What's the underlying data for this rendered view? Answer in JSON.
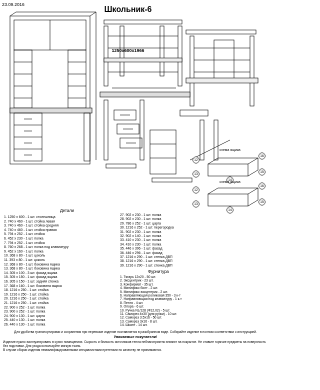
{
  "header": {
    "date": "23.09.2016",
    "title": "Школьник-6",
    "dimensions": "1250x600x1966"
  },
  "parts": {
    "title": "Детали",
    "items": [
      "1. 1250 x 600 - 1 шт. столешница",
      "2. 740 x 460 - 1 шт. стойка левая",
      "3. 740 x 460 - 1 шт. стойка средняя",
      "4. 740 x 460 - 1 шт. стойка правая",
      "5. 794 x 252 - 1 шт. стойка",
      "6. 452 x 230 - 1 шт. полка",
      "7. 794 x 252 - 1 шт. стойка",
      "8. 760 x 268 - 1 шт. полка под клавиатуру",
      "9. 452 x 160 - 1 шт. полка",
      "10. 368 x 80 - 1 шт. цоколь",
      "11. 393 x 80 - 1 шт. цоколь",
      "12. 368 x 80 - 1 шт. боковина ящика",
      "13. 368 x 80 - 1 шт. боковина ящика",
      "14. 305 x 100 - 3 шт. фасад ящика",
      "15. 305 x 150 - 1 шт. фасад ящика",
      "16. 305 x 150 - 1 шт. задняя стенка",
      "17. 368 x 160 - 1 шт. боковина ящика",
      "18. 1216 x 250 - 1 шт. стойка",
      "19. 1216 x 250 - 1 шт. стойка",
      "20. 1216 x 250 - 1 шт. стойка",
      "21. 1216 x 250 - 1 шт. стойка",
      "22. 900 x 252 - 1 шт. полка",
      "23. 900 x 252 - 1 шт. полка",
      "24. 900 x 130 - 1 шт. царга",
      "25. 440 x 130 - 1 шт. полка",
      "26. 440 x 130 - 1 шт. полка"
    ],
    "items2": [
      "27. 902 x 230 - 1 шт. полка",
      "28. 902 x 230 - 1 шт. полка",
      "29. 786 x 252 - 1 шт. царга",
      "30. 1216 x 252 - 1 шт. перегородка",
      "31. 902 x 230 - 1 шт. полка",
      "32. 902 x 140 - 1 шт. полка",
      "33. 410 x 230 - 1 шт. полка",
      "34. 410 x 230 - 1 шт. полка",
      "35. 446 x 396 - 1 шт. фасад",
      "36. 446 x 296 - 1 шт. фасад",
      "37. 1216 x 290 - 1 шт. стенка ДВП",
      "38. 1216 x 290 - 1 шт. стенка ДВП",
      "39. 1216 x 290 - 1 шт. стенка ДВП"
    ]
  },
  "fittings": {
    "title": "Фурнитура",
    "items": [
      "1. Тягарь 12x20 - 50 шт.",
      "2. Эксцентрик - 23 шт.",
      "3. Конфирмат - 35 шт.",
      "4. Минификс болт - 2 шт.",
      "5. Минификс эксцентрик - 2 шт.",
      "6. Направляющая роликовая 350 - 3 к-т",
      "7. Направляющая под клавиатуру - 1 к-т",
      "8. Петля - 4 шт.",
      "9. Опора - 6 шт.",
      "10. Ручка NL/128 (Ф12,02) - 5 шт.",
      "11. Саморез 4x30 (для ручки) - 10 шт.",
      "12. Саморез 3.5x16 - 50 шт.",
      "13. Саморез 3x16 - 8 шт.",
      "14. Шкант - 14 шт."
    ]
  },
  "schemes": [
    "схема ящика",
    "схема ящика"
  ],
  "callouts": [
    "12",
    "16",
    "13",
    "15",
    "14",
    "12",
    "16",
    "13",
    "15",
    "14"
  ],
  "footer": {
    "intro": "Для удобства транспортировки и сохранения при перевозке изделие поставляется в разобранном виде. Собирайте изделие в полном соответствии с инструкцией.",
    "heading": "Уважаемые покупатели!",
    "paragraphs": [
      "Изделие нужно эксплуатировать в сухих помещениях. Сырость и близость источников тепла неблагоприятно влияют на покрытие. Не ставьте горячие предметы на поверхность без подставки. Для ухода используйте мягкую ткань.",
      "В случае сборки изделия неквалифицированными специалистами претензии по качеству не принимаются."
    ]
  }
}
